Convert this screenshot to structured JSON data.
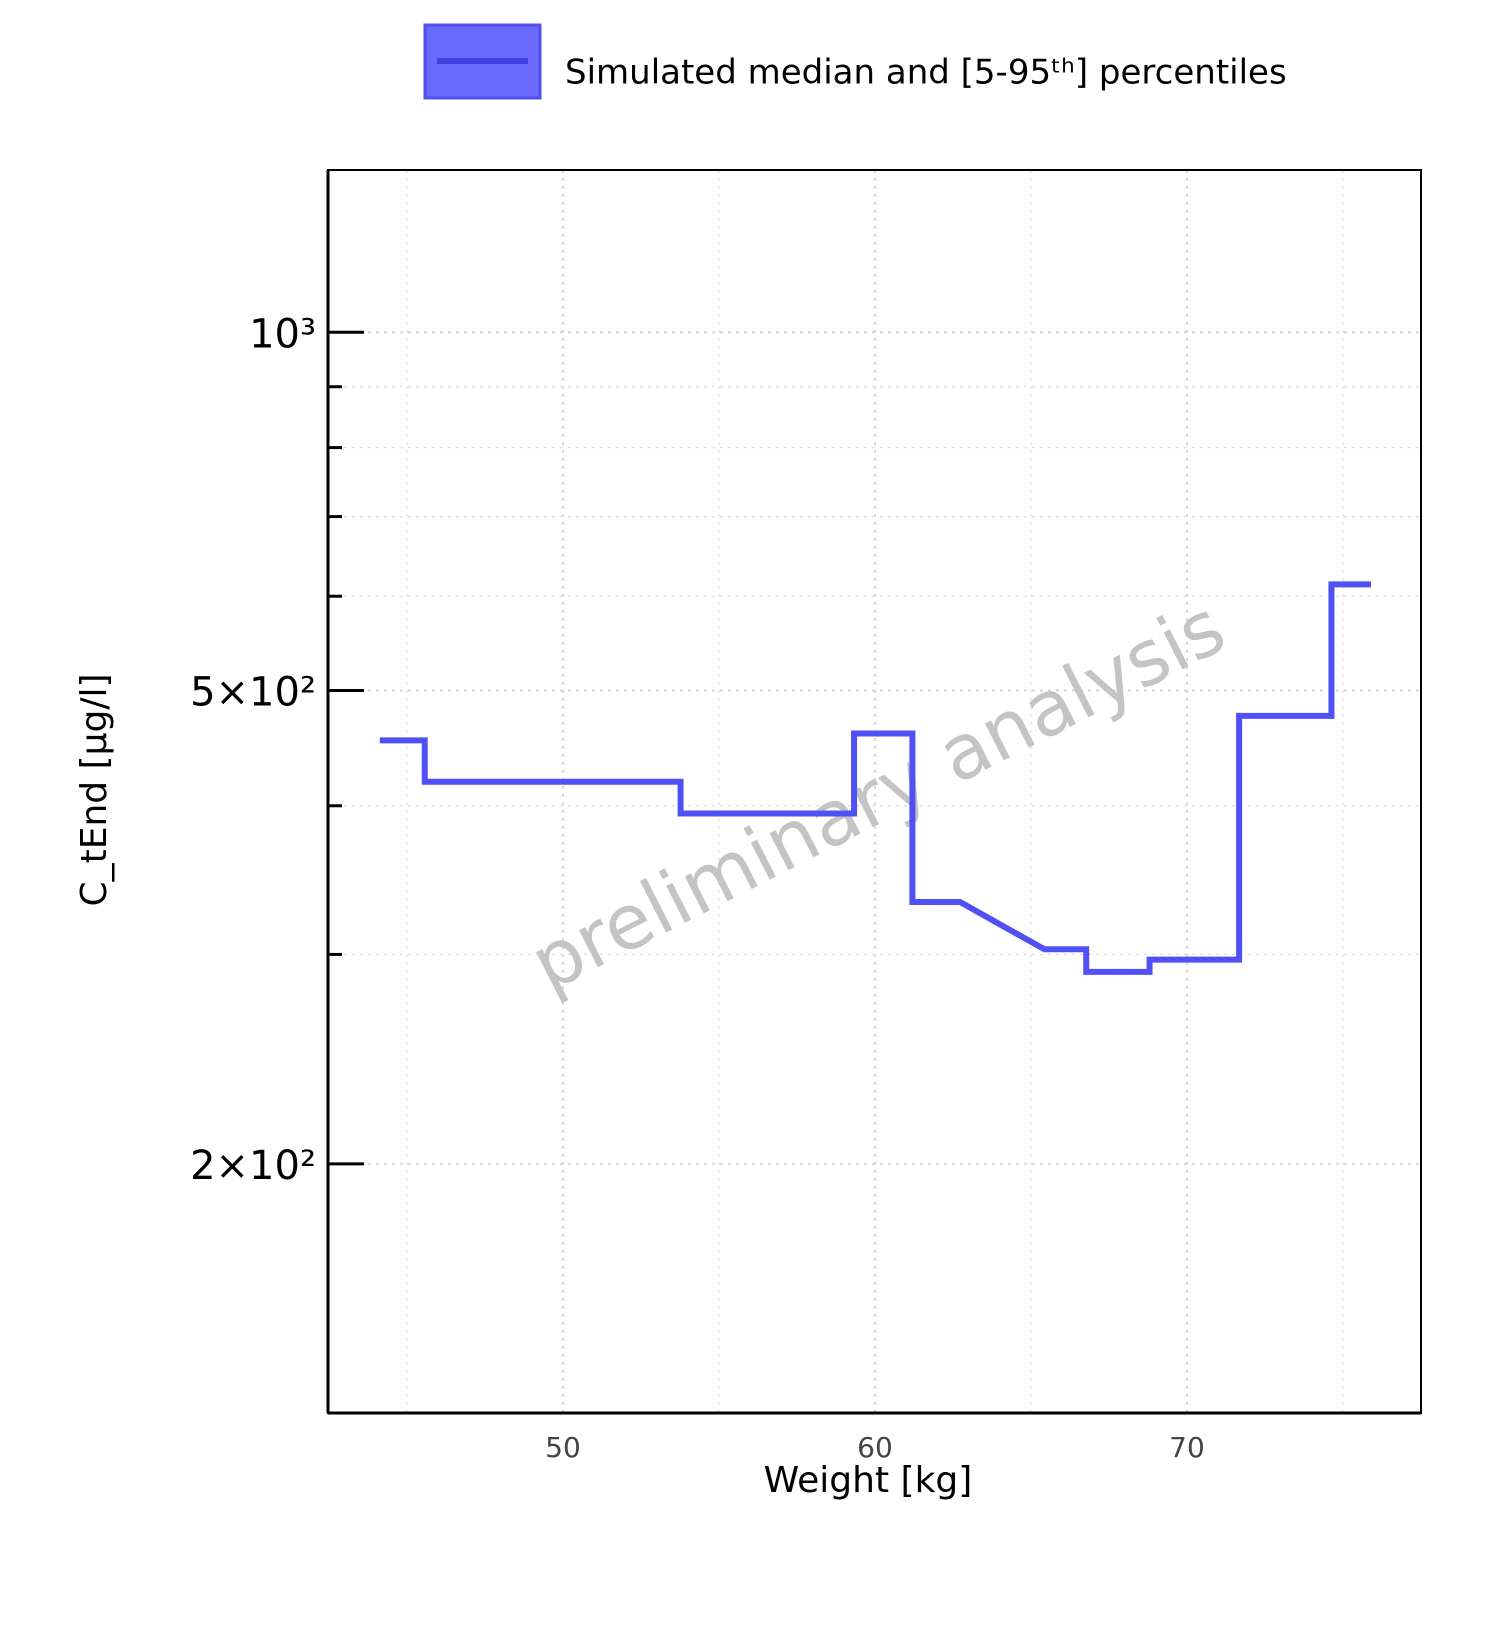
{
  "chart_data": {
    "type": "line",
    "x_label": "Weight [kg]",
    "y_label": "C_tEnd [µg/l]",
    "watermark": "preliminary analysis",
    "x": [
      44.13,
      45.57,
      45.57,
      53.77,
      53.77,
      59.33,
      59.33,
      61.2,
      61.2,
      62.73,
      65.43,
      66.77,
      66.77,
      68.8,
      68.8,
      71.67,
      71.67,
      74.63,
      74.63,
      75.9
    ],
    "series": [
      {
        "name": "Simulated median and [5-95ᵗʰ] percentiles",
        "color": "#5050f5",
        "values": [
          454,
          454,
          419,
          419,
          394,
          394,
          460,
          460,
          332,
          332,
          303,
          303,
          290,
          290,
          297,
          297,
          476,
          476,
          614,
          614
        ]
      }
    ],
    "xlim": [
      42.47,
      77.5
    ],
    "xticks": [
      50,
      60,
      70
    ],
    "xminorticks": [
      45,
      55,
      65,
      75
    ],
    "ylim": [
      123.5,
      1369
    ],
    "ylog": true,
    "yticks": [
      {
        "value": 200,
        "label": "2×10²"
      },
      {
        "value": 500,
        "label": "5×10²"
      },
      {
        "value": 1000,
        "label": "10³"
      }
    ],
    "yminorticks": [
      300,
      400,
      600,
      700,
      800,
      900
    ],
    "grid": true,
    "legend": "top"
  }
}
